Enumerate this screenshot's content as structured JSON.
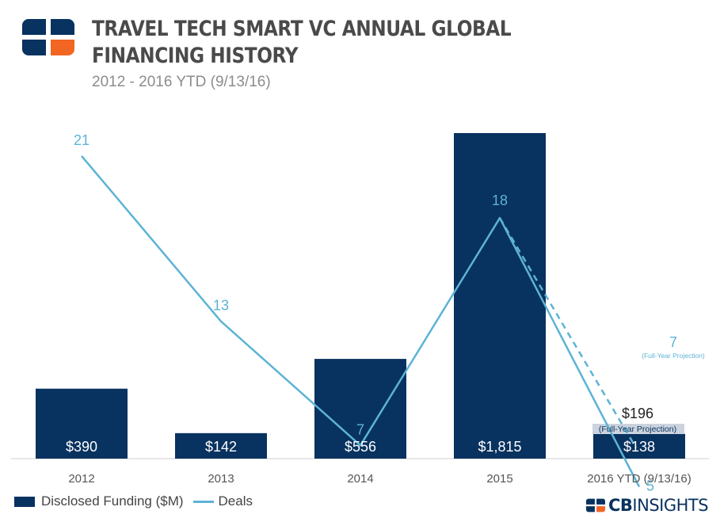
{
  "header": {
    "title": "TRAVEL TECH SMART VC ANNUAL GLOBAL FINANCING HISTORY",
    "subtitle": "2012 - 2016 YTD (9/13/16)"
  },
  "chart_data": {
    "type": "bar",
    "categories": [
      "2012",
      "2013",
      "2014",
      "2015",
      "2016 YTD (9/13/16)"
    ],
    "series": [
      {
        "name": "Disclosed Funding ($M)",
        "type": "bar",
        "values": [
          390,
          142,
          556,
          1815,
          138
        ],
        "labels": [
          "$390",
          "$142",
          "$556",
          "$1,815",
          "$138"
        ]
      },
      {
        "name": "Deals",
        "type": "line",
        "values": [
          21,
          13,
          7,
          18,
          5
        ],
        "labels": [
          "21",
          "13",
          "7",
          "18",
          "5"
        ]
      }
    ],
    "projection": {
      "label": "(Full-Year Projection)",
      "funding_value": 196,
      "funding_label": "$196",
      "deals_value": 7,
      "deals_label": "7"
    },
    "colors": {
      "bar": "#08325f",
      "line": "#5db3d6",
      "label_text": "#5db3d6",
      "bar_label_text": "#ffffff"
    },
    "legend_position": "bottom-left",
    "grid": false
  },
  "legend": {
    "funding_label": "Disclosed Funding ($M)",
    "deals_label": "Deals"
  },
  "brand": {
    "prefix": "CB",
    "name": "INSIGHTS"
  }
}
